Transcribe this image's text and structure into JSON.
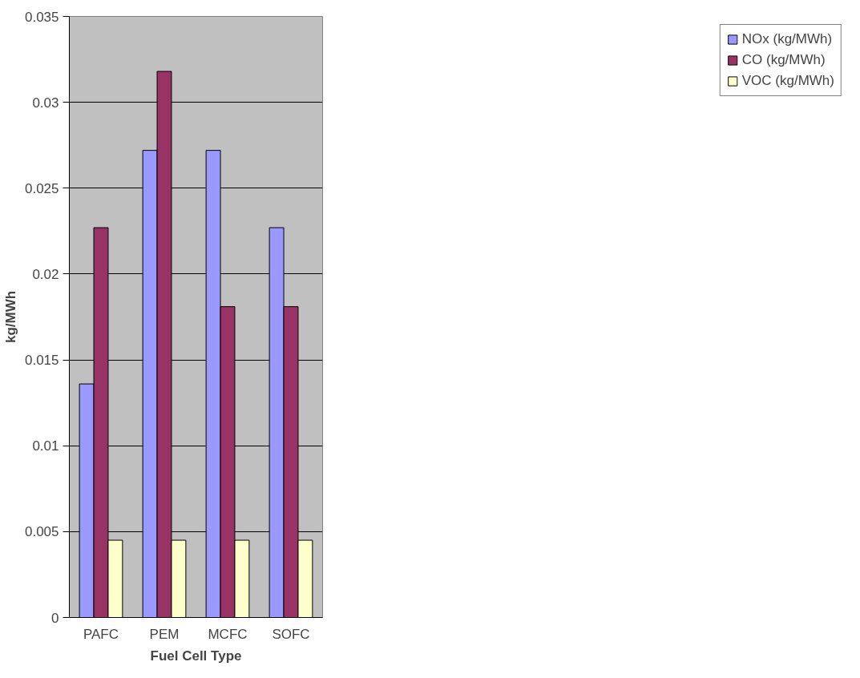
{
  "chart_data": {
    "type": "bar",
    "xlabel": "Fuel Cell Type",
    "ylabel": "kg/MWh",
    "categories": [
      "PAFC",
      "PEM",
      "MCFC",
      "SOFC"
    ],
    "series": [
      {
        "name": "NOx (kg/MWh)",
        "color": "#9999ff",
        "values": [
          0.0136,
          0.0272,
          0.0272,
          0.0227
        ]
      },
      {
        "name": "CO (kg/MWh)",
        "color": "#993366",
        "values": [
          0.0227,
          0.0318,
          0.0181,
          0.0181
        ]
      },
      {
        "name": "VOC (kg/MWh)",
        "color": "#ffffcc",
        "values": [
          0.0045,
          0.0045,
          0.0045,
          0.0045
        ]
      }
    ],
    "ylim": [
      0,
      0.035
    ],
    "yticks": [
      0,
      0.005,
      0.01,
      0.015,
      0.02,
      0.025,
      0.03,
      0.035
    ],
    "grid": "y",
    "legend": "right"
  }
}
